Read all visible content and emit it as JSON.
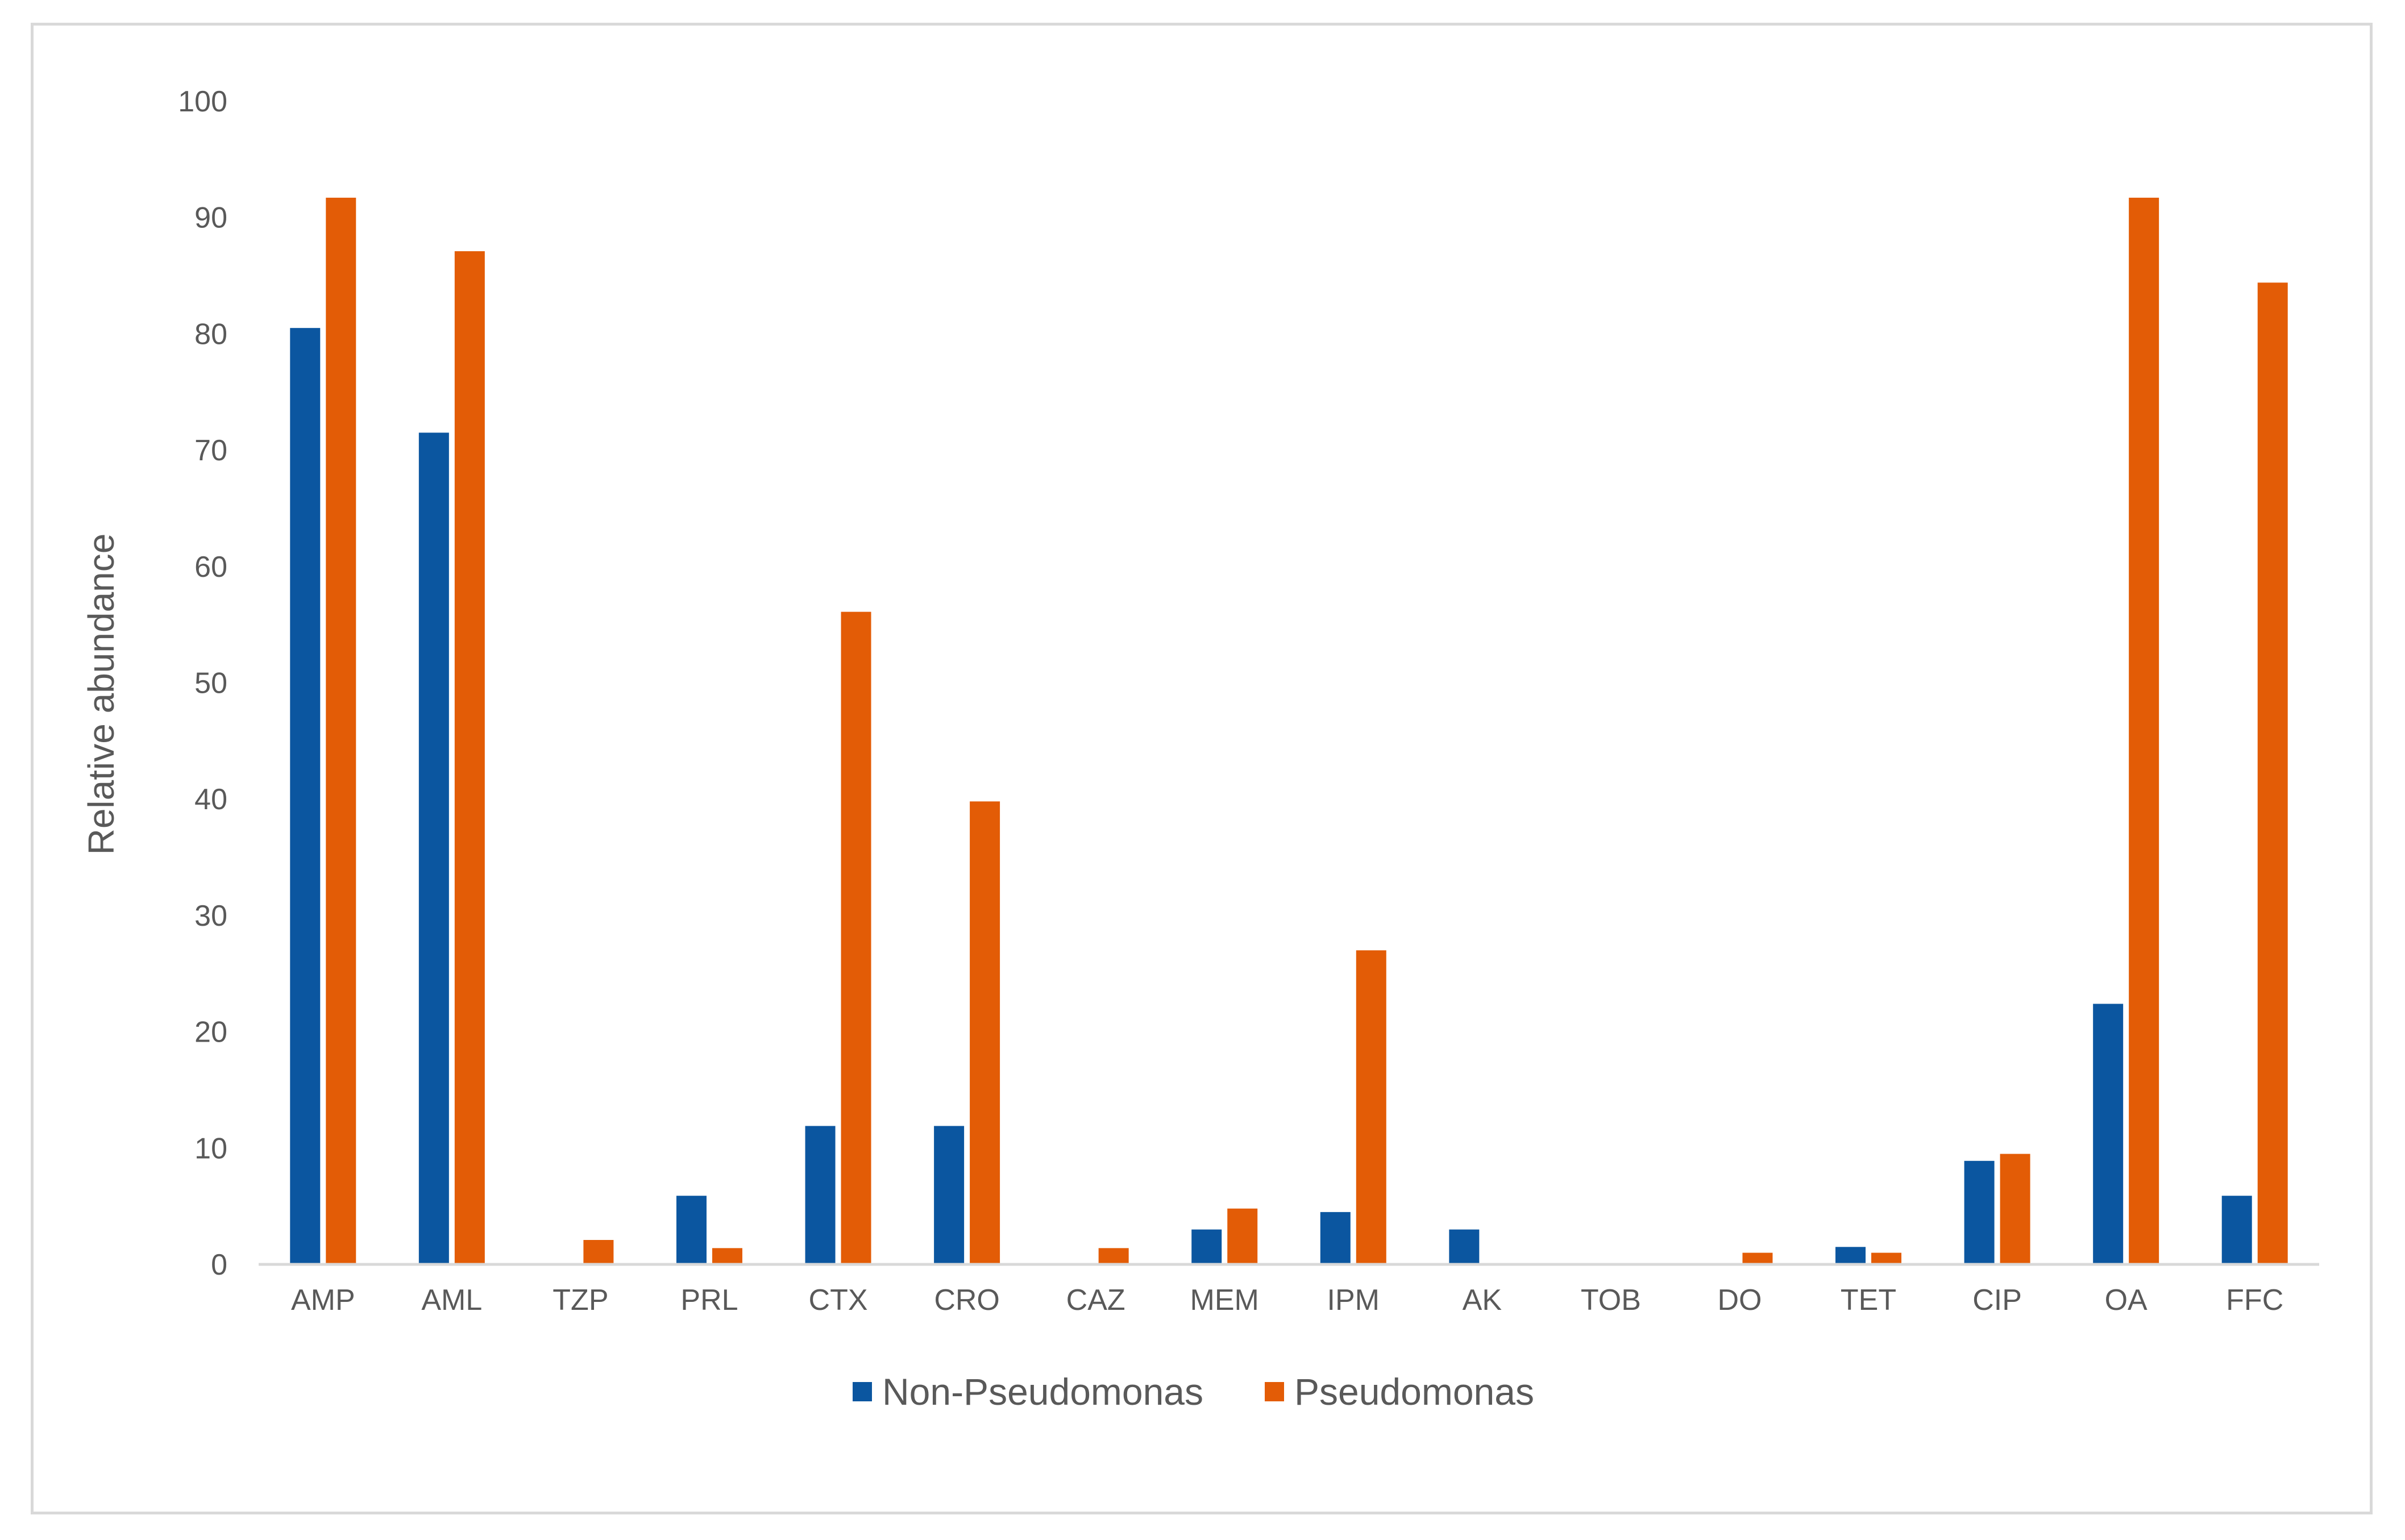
{
  "chart_data": {
    "type": "bar",
    "title": "",
    "xlabel": "",
    "ylabel": "Relative abundance",
    "ylim": [
      0,
      100
    ],
    "yticks": [
      0,
      10,
      20,
      30,
      40,
      50,
      60,
      70,
      80,
      90,
      100
    ],
    "grid": false,
    "legend_position": "bottom",
    "categories": [
      "AMP",
      "AML",
      "TZP",
      "PRL",
      "CTX",
      "CRO",
      "CAZ",
      "MEM",
      "IPM",
      "AK",
      "TOB",
      "DO",
      "TET",
      "CIP",
      "OA",
      "FFC"
    ],
    "series": [
      {
        "name": "Non-Pseudomonas",
        "color": "#0b56a0",
        "values": [
          80.5,
          71.5,
          0,
          5.9,
          11.9,
          11.9,
          0,
          3.0,
          4.5,
          3.0,
          0,
          0,
          1.5,
          8.9,
          22.4,
          5.9
        ]
      },
      {
        "name": "Pseudomonas",
        "color": "#e35c06",
        "values": [
          91.7,
          87.1,
          2.1,
          1.4,
          56.1,
          39.8,
          1.4,
          4.8,
          27.0,
          0,
          0,
          1.0,
          1.0,
          9.5,
          91.7,
          84.4
        ]
      }
    ]
  }
}
